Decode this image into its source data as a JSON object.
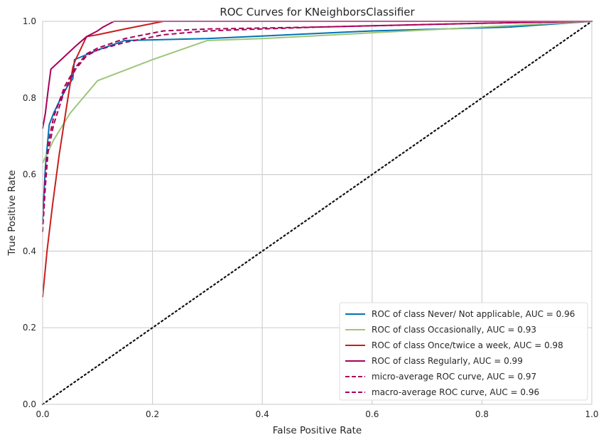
{
  "chart_data": {
    "type": "line",
    "title": "ROC Curves for KNeighborsClassifier",
    "xlabel": "False Positive Rate",
    "ylabel": "True Positive Rate",
    "xlim": [
      0,
      1
    ],
    "ylim": [
      0,
      1
    ],
    "grid": true,
    "legend_position": "lower-right",
    "x_ticks": [
      "0.0",
      "0.2",
      "0.4",
      "0.6",
      "0.8",
      "1.0"
    ],
    "y_ticks": [
      "0.0",
      "0.2",
      "0.4",
      "0.6",
      "0.8",
      "1.0"
    ],
    "series": [
      {
        "name": "ROC of class Never/ Not applicable, AUC = 0.96",
        "color": "#0072B2",
        "dash": "solid",
        "x": [
          0,
          0.005,
          0.012,
          0.02,
          0.03,
          0.045,
          0.055,
          0.058,
          0.075,
          0.1,
          0.15,
          0.3,
          0.6,
          0.85,
          1.0
        ],
        "y": [
          0.48,
          0.62,
          0.73,
          0.76,
          0.79,
          0.83,
          0.85,
          0.9,
          0.91,
          0.925,
          0.95,
          0.955,
          0.975,
          0.985,
          1.0
        ]
      },
      {
        "name": "ROC of class Occasionally, AUC = 0.93",
        "color": "#9DC67A",
        "dash": "solid",
        "x": [
          0,
          0.02,
          0.05,
          0.1,
          0.2,
          0.3,
          0.4,
          0.6,
          0.8,
          1.0
        ],
        "y": [
          0.63,
          0.69,
          0.76,
          0.845,
          0.9,
          0.95,
          0.955,
          0.97,
          0.985,
          1.0
        ]
      },
      {
        "name": "ROC of class Once/twice a week, AUC = 0.98",
        "color": "#C81E1E",
        "dash": "solid",
        "x": [
          0,
          0.008,
          0.018,
          0.03,
          0.045,
          0.055,
          0.06,
          0.08,
          0.1,
          0.15,
          0.22,
          0.3,
          1.0
        ],
        "y": [
          0.28,
          0.4,
          0.52,
          0.65,
          0.79,
          0.88,
          0.9,
          0.96,
          0.965,
          0.98,
          1.0,
          1.0,
          1.0
        ]
      },
      {
        "name": "ROC of class Regularly, AUC = 0.99",
        "color": "#A8005A",
        "dash": "solid",
        "x": [
          0,
          0.005,
          0.01,
          0.015,
          0.03,
          0.06,
          0.08,
          0.1,
          0.11,
          0.13,
          1.0
        ],
        "y": [
          0.72,
          0.76,
          0.82,
          0.875,
          0.895,
          0.935,
          0.96,
          0.975,
          0.985,
          1.0,
          1.0
        ]
      },
      {
        "name": "micro-average ROC curve, AUC = 0.97",
        "color": "#A8005A",
        "dash": "dashed",
        "x": [
          0,
          0.005,
          0.01,
          0.02,
          0.04,
          0.06,
          0.08,
          0.1,
          0.15,
          0.22,
          0.3,
          0.5,
          0.8,
          1.0
        ],
        "y": [
          0.47,
          0.6,
          0.68,
          0.75,
          0.83,
          0.88,
          0.915,
          0.93,
          0.955,
          0.975,
          0.98,
          0.985,
          0.995,
          1.0
        ]
      },
      {
        "name": "macro-average ROC curve, AUC = 0.96",
        "color": "#A8005A",
        "dash": "dashed",
        "x": [
          0,
          0.005,
          0.01,
          0.02,
          0.04,
          0.06,
          0.08,
          0.1,
          0.15,
          0.22,
          0.3,
          0.5,
          0.8,
          1.0
        ],
        "y": [
          0.45,
          0.57,
          0.66,
          0.73,
          0.82,
          0.875,
          0.91,
          0.925,
          0.945,
          0.965,
          0.975,
          0.985,
          0.995,
          1.0
        ]
      }
    ],
    "reference_line": {
      "color": "#111111",
      "dash": "dotted",
      "x": [
        0,
        1
      ],
      "y": [
        0,
        1
      ]
    }
  }
}
